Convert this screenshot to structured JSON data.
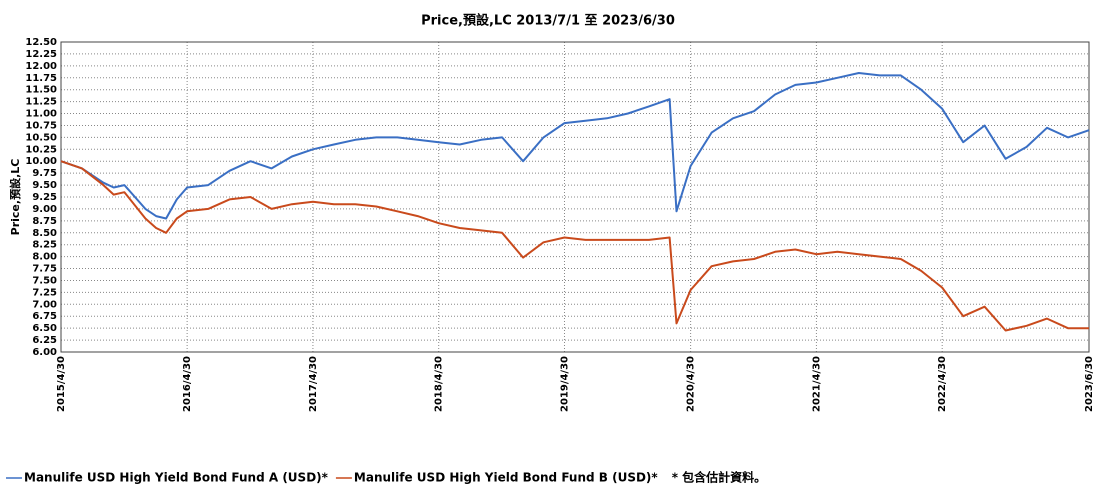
{
  "chart_data": {
    "type": "line",
    "title": "Price,預設,LC 2013/7/1 至 2023/6/30",
    "y_label": "Price,預設,LC",
    "note": "*  包含估計資料。",
    "grid": true,
    "legend": "bottom",
    "x": [
      "2015/4/30",
      "2015/6/30",
      "2015/8/31",
      "2015/9/30",
      "2015/10/31",
      "2015/12/31",
      "2016/1/31",
      "2016/2/29",
      "2016/3/31",
      "2016/4/30",
      "2016/6/30",
      "2016/8/31",
      "2016/10/31",
      "2016/12/31",
      "2017/2/28",
      "2017/4/30",
      "2017/6/30",
      "2017/8/31",
      "2017/10/31",
      "2017/12/31",
      "2018/2/28",
      "2018/4/30",
      "2018/6/30",
      "2018/8/31",
      "2018/10/31",
      "2018/12/31",
      "2019/2/28",
      "2019/4/30",
      "2019/6/30",
      "2019/8/31",
      "2019/10/31",
      "2019/12/31",
      "2020/2/29",
      "2020/3/20",
      "2020/4/30",
      "2020/6/30",
      "2020/8/31",
      "2020/10/31",
      "2020/12/31",
      "2021/2/28",
      "2021/4/30",
      "2021/6/30",
      "2021/8/31",
      "2021/10/31",
      "2021/12/31",
      "2022/2/28",
      "2022/4/30",
      "2022/6/30",
      "2022/8/31",
      "2022/10/31",
      "2022/12/31",
      "2023/2/28",
      "2023/4/30",
      "2023/6/30"
    ],
    "series": [
      {
        "name": "Manulife USD High Yield Bond Fund A (USD)*",
        "color": "#3a6fc4",
        "values": [
          10.0,
          9.85,
          9.55,
          9.45,
          9.5,
          9.0,
          8.85,
          8.8,
          9.2,
          9.45,
          9.5,
          9.8,
          10.0,
          9.85,
          10.1,
          10.25,
          10.35,
          10.45,
          10.5,
          10.5,
          10.45,
          10.4,
          10.35,
          10.45,
          10.5,
          10.0,
          10.5,
          10.8,
          10.85,
          10.9,
          11.0,
          11.15,
          11.3,
          8.95,
          9.9,
          10.6,
          10.9,
          11.05,
          11.4,
          11.6,
          11.65,
          11.75,
          11.85,
          11.8,
          11.8,
          11.5,
          11.1,
          10.4,
          10.75,
          10.05,
          10.3,
          10.7,
          10.5,
          10.65
        ]
      },
      {
        "name": "Manulife USD High Yield Bond Fund B (USD)*",
        "color": "#c94a1c",
        "values": [
          10.0,
          9.85,
          9.5,
          9.3,
          9.35,
          8.8,
          8.6,
          8.5,
          8.8,
          8.95,
          9.0,
          9.2,
          9.25,
          9.0,
          9.1,
          9.15,
          9.1,
          9.1,
          9.05,
          8.95,
          8.85,
          8.7,
          8.6,
          8.55,
          8.5,
          7.98,
          8.3,
          8.4,
          8.35,
          8.35,
          8.35,
          8.35,
          8.4,
          6.6,
          7.3,
          7.8,
          7.9,
          7.95,
          8.1,
          8.15,
          8.05,
          8.1,
          8.05,
          8.0,
          7.95,
          7.7,
          7.35,
          6.75,
          6.95,
          6.45,
          6.55,
          6.7,
          6.5,
          6.5
        ]
      }
    ],
    "xlim": [
      "2015/4/30",
      "2023/6/30"
    ],
    "xticks": [
      "2015/4/30",
      "2016/4/30",
      "2017/4/30",
      "2018/4/30",
      "2019/4/30",
      "2020/4/30",
      "2021/4/30",
      "2022/4/30",
      "2023/6/30"
    ],
    "ylim": [
      6,
      12.5
    ],
    "yticks": [
      {
        "value": 6,
        "label": "6.00"
      },
      {
        "value": 6.25,
        "label": "6.25"
      },
      {
        "value": 6.5,
        "label": "6.50"
      },
      {
        "value": 6.75,
        "label": "6.75"
      },
      {
        "value": 7,
        "label": "7.00"
      },
      {
        "value": 7.25,
        "label": "7.25"
      },
      {
        "value": 7.5,
        "label": "7.50"
      },
      {
        "value": 7.75,
        "label": "7.75"
      },
      {
        "value": 8,
        "label": "8.00"
      },
      {
        "value": 8.25,
        "label": "8.25"
      },
      {
        "value": 8.5,
        "label": "8.50"
      },
      {
        "value": 8.75,
        "label": "8.75"
      },
      {
        "value": 9,
        "label": "9.00"
      },
      {
        "value": 9.25,
        "label": "9.25"
      },
      {
        "value": 9.5,
        "label": "9.50"
      },
      {
        "value": 9.75,
        "label": "9.75"
      },
      {
        "value": 10,
        "label": "10.00"
      },
      {
        "value": 10.25,
        "label": "10.25"
      },
      {
        "value": 10.5,
        "label": "10.50"
      },
      {
        "value": 10.75,
        "label": "10.75"
      },
      {
        "value": 11,
        "label": "11.00"
      },
      {
        "value": 11.25,
        "label": "11.25"
      },
      {
        "value": 11.5,
        "label": "11.50"
      },
      {
        "value": 11.75,
        "label": "11.75"
      },
      {
        "value": 12,
        "label": "12.00"
      },
      {
        "value": 12.25,
        "label": "12.25"
      },
      {
        "value": 12.5,
        "label": "12.50"
      }
    ]
  }
}
